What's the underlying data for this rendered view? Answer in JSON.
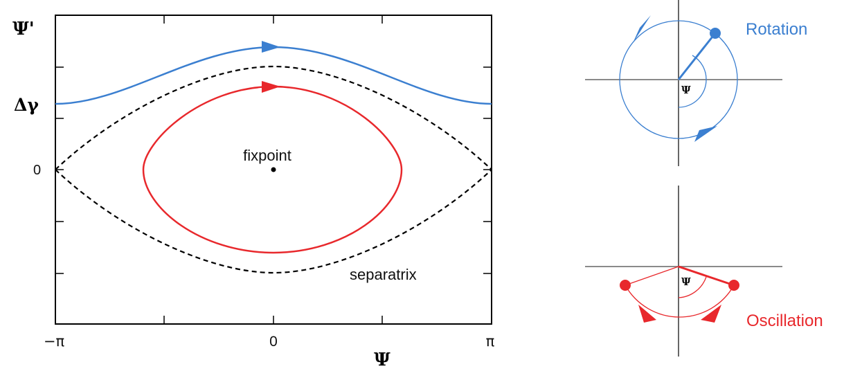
{
  "phase_plot": {
    "y_axis_label": "Ψ'",
    "delta_gamma_label": "Δγ",
    "x_axis_label": "Ψ",
    "x_tick_labels": [
      "−π",
      "0",
      "π"
    ],
    "y_zero_label": "0",
    "fixpoint_label": "fixpoint",
    "separatrix_label": "separatrix"
  },
  "rotation_diagram": {
    "title": "Rotation",
    "angle_label": "Ψ"
  },
  "oscillation_diagram": {
    "title": "Oscillation",
    "angle_label": "Ψ"
  },
  "colors": {
    "rotation": "#3b7fd0",
    "oscillation": "#e8282c",
    "separatrix": "#000000",
    "axis_gray": "#8a8a8a"
  }
}
